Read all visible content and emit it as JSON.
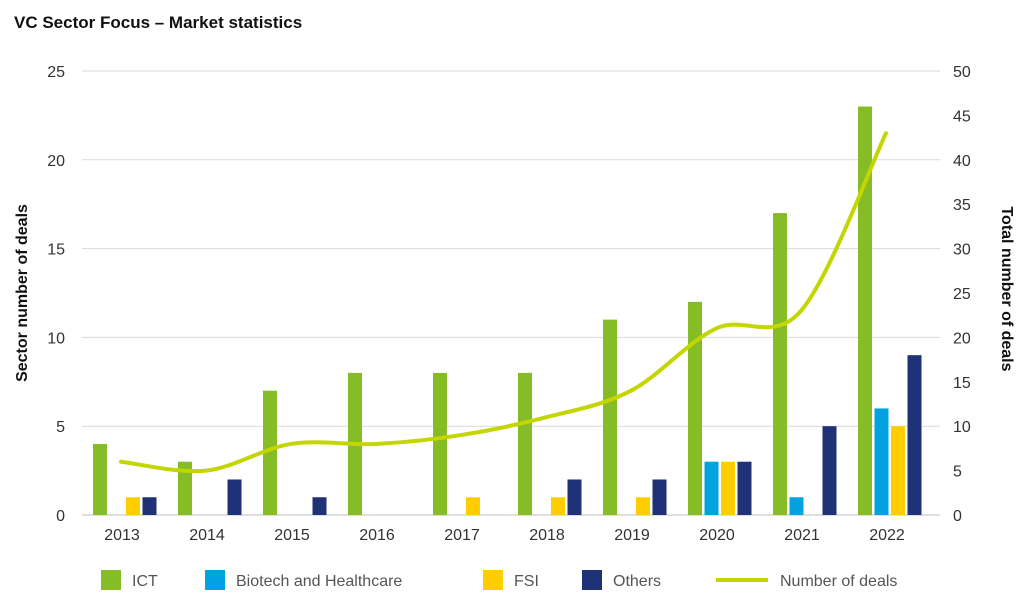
{
  "title": "VC Sector Focus – Market statistics",
  "chart_data": {
    "type": "bar",
    "title": "VC Sector Focus – Market statistics",
    "categories": [
      "2013",
      "2014",
      "2015",
      "2016",
      "2017",
      "2018",
      "2019",
      "2020",
      "2021",
      "2022"
    ],
    "ylabel": "Sector number of deals",
    "y2label": "Total number of deals",
    "ylim": [
      0,
      25
    ],
    "y2lim": [
      0,
      50
    ],
    "yticks": [
      "0",
      "5",
      "10",
      "15",
      "20",
      "25"
    ],
    "y2ticks": [
      "0",
      "5",
      "10",
      "15",
      "20",
      "25",
      "30",
      "35",
      "40",
      "45",
      "50"
    ],
    "grid": true,
    "legend_position": "bottom",
    "series": [
      {
        "name": "ICT",
        "type": "bar",
        "axis": "left",
        "color": "#86bc25",
        "values": [
          4,
          3,
          7,
          8,
          8,
          8,
          11,
          12,
          17,
          23
        ]
      },
      {
        "name": "Biotech and Healthcare",
        "type": "bar",
        "axis": "left",
        "color": "#00a3e0",
        "values": [
          0,
          0,
          0,
          0,
          0,
          0,
          0,
          3,
          1,
          6
        ]
      },
      {
        "name": "FSI",
        "type": "bar",
        "axis": "left",
        "color": "#ffcd00",
        "values": [
          1,
          0,
          0,
          0,
          1,
          1,
          1,
          3,
          0,
          5
        ]
      },
      {
        "name": "Others",
        "type": "bar",
        "axis": "left",
        "color": "#1f3277",
        "values": [
          1,
          2,
          1,
          0,
          0,
          2,
          2,
          3,
          5,
          9
        ]
      },
      {
        "name": "Number of deals",
        "type": "line",
        "axis": "right",
        "color": "#c4d600",
        "values": [
          6,
          5,
          8,
          8,
          9,
          11,
          14,
          21,
          23,
          43
        ]
      }
    ]
  }
}
